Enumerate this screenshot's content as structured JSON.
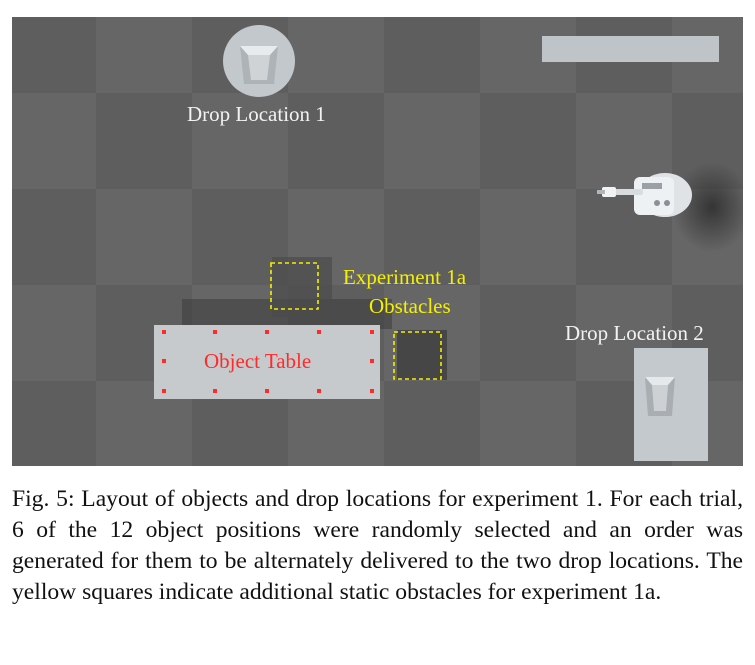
{
  "figure": {
    "drop_location_1": "Drop Location 1",
    "drop_location_2": "Drop Location 2",
    "obstacles_line1": "Experiment 1a",
    "obstacles_line2": "Obstacles",
    "object_table": "Object Table"
  },
  "caption": {
    "text": "Fig. 5: Layout of objects and drop locations for experiment 1. For each trial, 6 of the 12 object positions were randomly selected and an order was generated for them to be alternately delivered to the two drop locations. The yellow squares indicate additional static obstacles for experiment 1a."
  }
}
